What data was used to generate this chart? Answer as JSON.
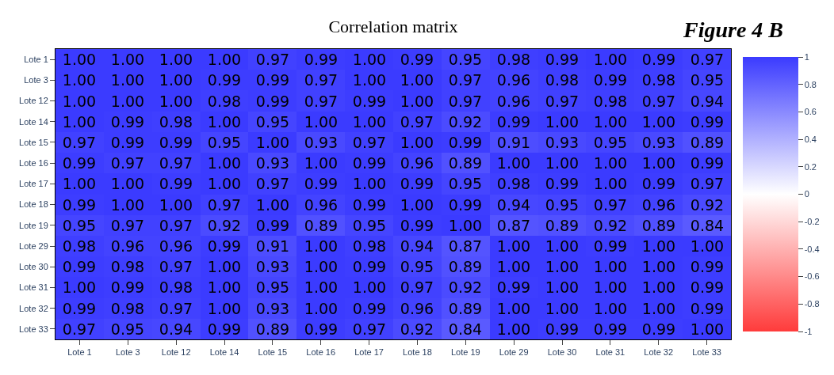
{
  "chart_data": {
    "type": "heatmap",
    "title": "Correlation matrix",
    "annotations": [
      "Figure 4 B"
    ],
    "categories": [
      "Lote 1",
      "Lote 3",
      "Lote 12",
      "Lote 14",
      "Lote 15",
      "Lote 16",
      "Lote 17",
      "Lote 18",
      "Lote 19",
      "Lote 29",
      "Lote 30",
      "Lote 31",
      "Lote 32",
      "Lote 33"
    ],
    "y_categories": [
      "Lote 1",
      "Lote 3",
      "Lote 12",
      "Lote 14",
      "Lote 15",
      "Lote 16",
      "Lote 17",
      "Lote 18",
      "Lote 19",
      "Lote 29",
      "Lote 30",
      "Lote 31",
      "Lote 32",
      "Lote 33"
    ],
    "cells": [
      [
        1.0,
        1.0,
        1.0,
        1.0,
        0.97,
        0.99,
        1.0,
        0.99,
        0.95,
        0.98,
        0.99,
        1.0,
        0.99,
        0.97
      ],
      [
        1.0,
        1.0,
        1.0,
        0.99,
        0.99,
        0.97,
        1.0,
        1.0,
        0.97,
        0.96,
        0.98,
        0.99,
        0.98,
        0.95
      ],
      [
        1.0,
        1.0,
        1.0,
        0.98,
        0.99,
        0.97,
        0.99,
        1.0,
        0.97,
        0.96,
        0.97,
        0.98,
        0.97,
        0.94
      ],
      [
        1.0,
        0.99,
        0.98,
        1.0,
        0.95,
        1.0,
        1.0,
        0.97,
        0.92,
        0.99,
        1.0,
        1.0,
        1.0,
        0.99
      ],
      [
        0.97,
        0.99,
        0.99,
        0.95,
        1.0,
        0.93,
        0.97,
        1.0,
        0.99,
        0.91,
        0.93,
        0.95,
        0.93,
        0.89
      ],
      [
        0.99,
        0.97,
        0.97,
        1.0,
        0.93,
        1.0,
        0.99,
        0.96,
        0.89,
        1.0,
        1.0,
        1.0,
        1.0,
        0.99
      ],
      [
        1.0,
        1.0,
        0.99,
        1.0,
        0.97,
        0.99,
        1.0,
        0.99,
        0.95,
        0.98,
        0.99,
        1.0,
        0.99,
        0.97
      ],
      [
        0.99,
        1.0,
        1.0,
        0.97,
        1.0,
        0.96,
        0.99,
        1.0,
        0.99,
        0.94,
        0.95,
        0.97,
        0.96,
        0.92
      ],
      [
        0.95,
        0.97,
        0.97,
        0.92,
        0.99,
        0.89,
        0.95,
        0.99,
        1.0,
        0.87,
        0.89,
        0.92,
        0.89,
        0.84
      ],
      [
        0.98,
        0.96,
        0.96,
        0.99,
        0.91,
        1.0,
        0.98,
        0.94,
        0.87,
        1.0,
        1.0,
        0.99,
        1.0,
        1.0
      ],
      [
        0.99,
        0.98,
        0.97,
        1.0,
        0.93,
        1.0,
        0.99,
        0.95,
        0.89,
        1.0,
        1.0,
        1.0,
        1.0,
        0.99
      ],
      [
        1.0,
        0.99,
        0.98,
        1.0,
        0.95,
        1.0,
        1.0,
        0.97,
        0.92,
        0.99,
        1.0,
        1.0,
        1.0,
        0.99
      ],
      [
        0.99,
        0.98,
        0.97,
        1.0,
        0.93,
        1.0,
        0.99,
        0.96,
        0.89,
        1.0,
        1.0,
        1.0,
        1.0,
        0.99
      ],
      [
        0.97,
        0.95,
        0.94,
        0.99,
        0.89,
        0.99,
        0.97,
        0.92,
        0.84,
        1.0,
        0.99,
        0.99,
        0.99,
        1.0
      ]
    ],
    "cell_labels": [
      [
        "1.00",
        "1.00",
        "1.00",
        "1.00",
        "0.97",
        "0.99",
        "1.00",
        "0.99",
        "0.95",
        "0.98",
        "0.99",
        "1.00",
        "0.99",
        "0.97"
      ],
      [
        "1.00",
        "1.00",
        "1.00",
        "0.99",
        "0.99",
        "0.97",
        "1.00",
        "1.00",
        "0.97",
        "0.96",
        "0.98",
        "0.99",
        "0.98",
        "0.95"
      ],
      [
        "1.00",
        "1.00",
        "1.00",
        "0.98",
        "0.99",
        "0.97",
        "0.99",
        "1.00",
        "0.97",
        "0.96",
        "0.97",
        "0.98",
        "0.97",
        "0.94"
      ],
      [
        "1.00",
        "0.99",
        "0.98",
        "1.00",
        "0.95",
        "1.00",
        "1.00",
        "0.97",
        "0.92",
        "0.99",
        "1.00",
        "1.00",
        "1.00",
        "0.99"
      ],
      [
        "0.97",
        "0.99",
        "0.99",
        "0.95",
        "1.00",
        "0.93",
        "0.97",
        "1.00",
        "0.99",
        "0.91",
        "0.93",
        "0.95",
        "0.93",
        "0.89"
      ],
      [
        "0.99",
        "0.97",
        "0.97",
        "1.00",
        "0.93",
        "1.00",
        "0.99",
        "0.96",
        "0.89",
        "1.00",
        "1.00",
        "1.00",
        "1.00",
        "0.99"
      ],
      [
        "1.00",
        "1.00",
        "0.99",
        "1.00",
        "0.97",
        "0.99",
        "1.00",
        "0.99",
        "0.95",
        "0.98",
        "0.99",
        "1.00",
        "0.99",
        "0.97"
      ],
      [
        "0.99",
        "1.00",
        "1.00",
        "0.97",
        "1.00",
        "0.96",
        "0.99",
        "1.00",
        "0.99",
        "0.94",
        "0.95",
        "0.97",
        "0.96",
        "0.92"
      ],
      [
        "0.95",
        "0.97",
        "0.97",
        "0.92",
        "0.99",
        "0.89",
        "0.95",
        "0.99",
        "1.00",
        "0.87",
        "0.89",
        "0.92",
        "0.89",
        "0.84"
      ],
      [
        "0.98",
        "0.96",
        "0.96",
        "0.99",
        "0.91",
        "1.00",
        "0.98",
        "0.94",
        "0.87",
        "1.00",
        "1.00",
        "0.99",
        "1.00",
        "1.00"
      ],
      [
        "0.99",
        "0.98",
        "0.97",
        "1.00",
        "0.93",
        "1.00",
        "0.99",
        "0.95",
        "0.89",
        "1.00",
        "1.00",
        "1.00",
        "1.00",
        "0.99"
      ],
      [
        "1.00",
        "0.99",
        "0.98",
        "1.00",
        "0.95",
        "1.00",
        "1.00",
        "0.97",
        "0.92",
        "0.99",
        "1.00",
        "1.00",
        "1.00",
        "0.99"
      ],
      [
        "0.99",
        "0.98",
        "0.97",
        "1.00",
        "0.93",
        "1.00",
        "0.99",
        "0.96",
        "0.89",
        "1.00",
        "1.00",
        "1.00",
        "1.00",
        "0.99"
      ],
      [
        "0.97",
        "0.95",
        "0.94",
        "0.99",
        "0.89",
        "0.99",
        "0.97",
        "0.92",
        "0.84",
        "1.00",
        "0.99",
        "0.99",
        "0.99",
        "1.00"
      ]
    ],
    "clim": [
      -1,
      1
    ],
    "cticks": [
      1,
      0.8,
      0.6,
      0.4,
      0.2,
      0,
      -0.2,
      -0.4,
      -0.6,
      -0.8,
      -1
    ],
    "colors": [
      "#ff3b3b",
      "#ffffff",
      "#3b3bff"
    ],
    "data_labels": true
  }
}
